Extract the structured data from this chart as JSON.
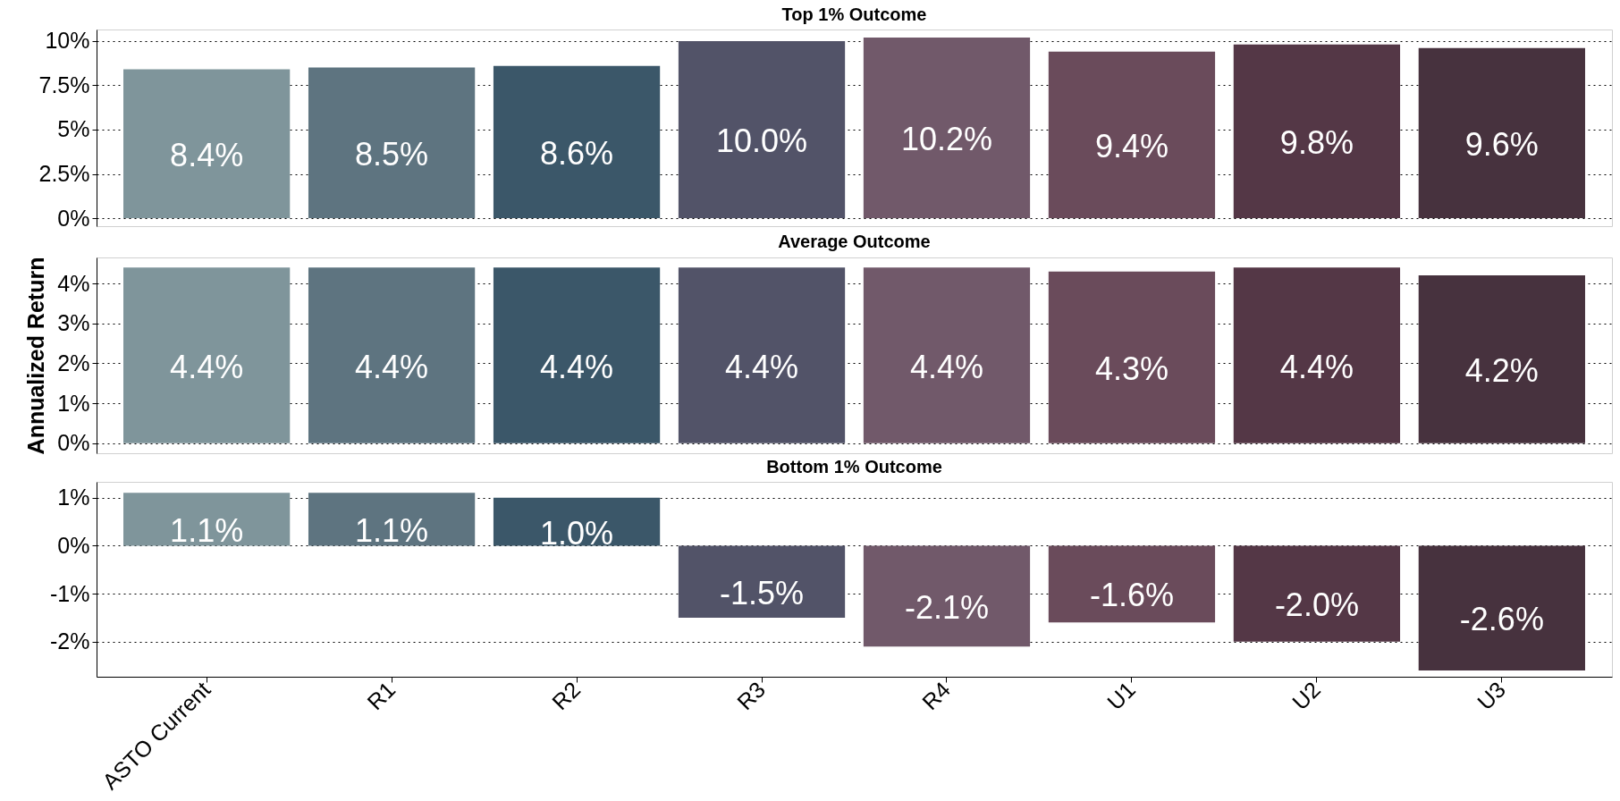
{
  "chart_data": [
    {
      "type": "bar",
      "title": "Top 1% Outcome",
      "categories": [
        null,
        null,
        null,
        null,
        null,
        null,
        null,
        null
      ],
      "values": [
        8.4,
        8.5,
        8.6,
        10.0,
        10.2,
        9.4,
        9.8,
        9.6
      ],
      "value_labels": [
        "8.4%",
        "8.5%",
        "8.6%",
        "10.0%",
        "10.2%",
        "9.4%",
        "9.8%",
        "9.6%"
      ],
      "colors": [
        "#7f959b",
        "#5e7480",
        "#3b5769",
        "#525368",
        "#71596a",
        "#6a4b5b",
        "#543746",
        "#47323e"
      ],
      "ylim": [
        -0.45,
        10.65
      ],
      "yticks": [
        {
          "value": 0,
          "label": "0%"
        },
        {
          "value": 2.5,
          "label": "2.5%"
        },
        {
          "value": 5,
          "label": "5%"
        },
        {
          "value": 7.5,
          "label": "7.5%"
        },
        {
          "value": 10,
          "label": "10%"
        }
      ],
      "grid": "y",
      "tick_labels": "y"
    },
    {
      "type": "bar",
      "title": "Average Outcome",
      "ylabel": "Annualized Return",
      "categories": [
        null,
        null,
        null,
        null,
        null,
        null,
        null,
        null
      ],
      "values": [
        4.4,
        4.4,
        4.4,
        4.4,
        4.4,
        4.3,
        4.4,
        4.2
      ],
      "value_labels": [
        "4.4%",
        "4.4%",
        "4.4%",
        "4.4%",
        "4.4%",
        "4.3%",
        "4.4%",
        "4.2%"
      ],
      "colors": [
        "#7f959b",
        "#5e7480",
        "#3b5769",
        "#525368",
        "#71596a",
        "#6a4b5b",
        "#543746",
        "#47323e"
      ],
      "ylim": [
        -0.25,
        4.65
      ],
      "yticks": [
        {
          "value": 0,
          "label": "0%"
        },
        {
          "value": 1,
          "label": "1%"
        },
        {
          "value": 2,
          "label": "2%"
        },
        {
          "value": 3,
          "label": "3%"
        },
        {
          "value": 4,
          "label": "4%"
        }
      ],
      "grid": "y",
      "tick_labels": "y"
    },
    {
      "type": "bar",
      "title": "Bottom 1% Outcome",
      "categories": [
        "ASTO Current",
        "R1",
        "R2",
        "R3",
        "R4",
        "U1",
        "U2",
        "U3"
      ],
      "values": [
        1.1,
        1.1,
        1.0,
        -1.5,
        -2.1,
        -1.6,
        -2.0,
        -2.6
      ],
      "value_labels": [
        "1.1%",
        "1.1%",
        "1.0%",
        "-1.5%",
        "-2.1%",
        "-1.6%",
        "-2.0%",
        "-2.6%"
      ],
      "colors": [
        "#7f959b",
        "#5e7480",
        "#3b5769",
        "#525368",
        "#71596a",
        "#6a4b5b",
        "#543746",
        "#47323e"
      ],
      "ylim": [
        -2.73,
        1.33
      ],
      "yticks": [
        {
          "value": -2,
          "label": "-2%"
        },
        {
          "value": -1,
          "label": "-1%"
        },
        {
          "value": 0,
          "label": "0%"
        },
        {
          "value": 1,
          "label": "1%"
        }
      ],
      "grid": "y"
    }
  ]
}
